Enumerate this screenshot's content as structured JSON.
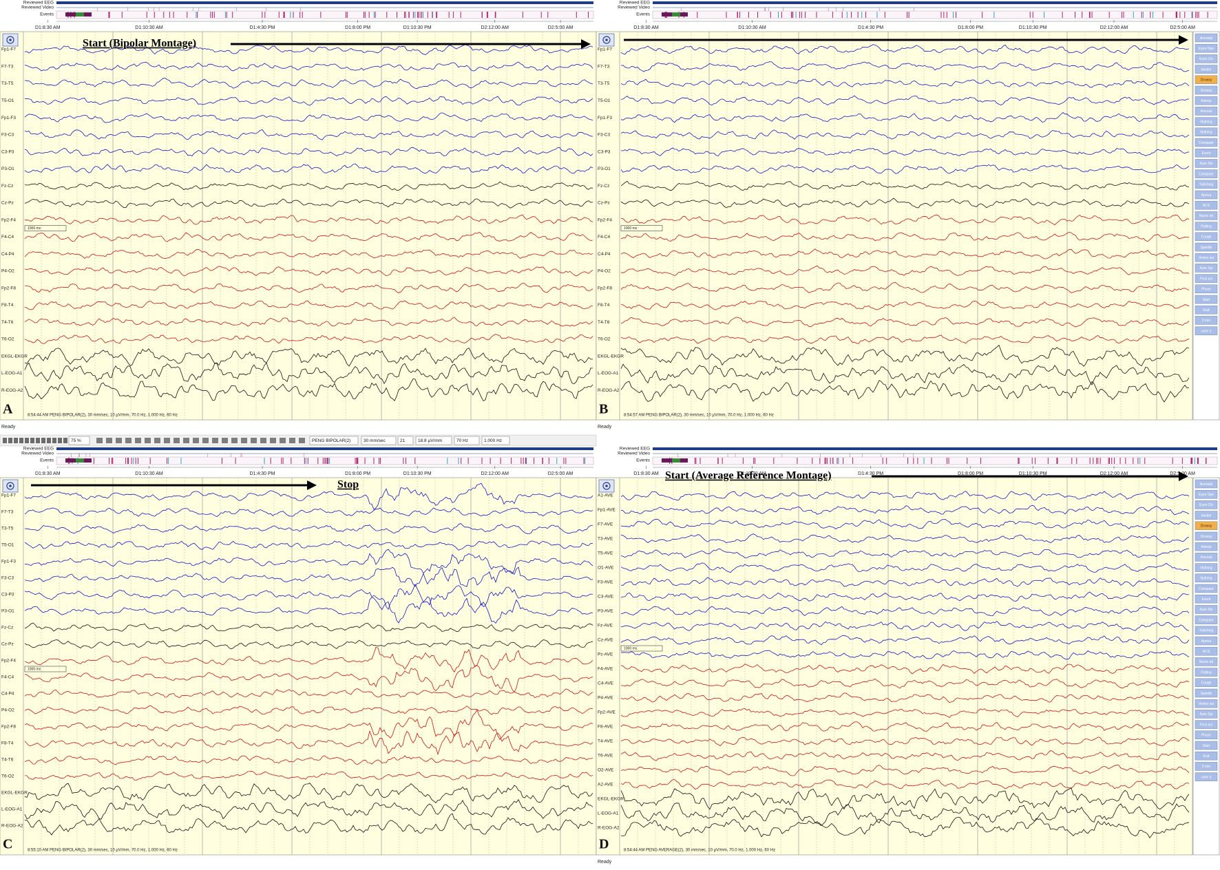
{
  "header_rows": [
    "Reviewed EEG",
    "Reviewed Video",
    "Events"
  ],
  "timeline": [
    "D1:8:30 AM",
    "D1:10:30 AM",
    "D1:4:30 PM",
    "D1:8:00 PM",
    "D1:10:30 PM",
    "D2:12:00 AM",
    "D2:5:00 AM"
  ],
  "toolbar": {
    "zoom": "75 %",
    "montage": "PENG BIPOLAR(2)",
    "speed": "30 mm/sec",
    "channels": "21",
    "sensitivity": "18.8 µV/mm",
    "high_filter": "70 Hz",
    "low_filter": "1.000 Hz"
  },
  "status_bar": "Ready",
  "scale_marker": "1000 ms",
  "side_buttons": [
    "Annotati",
    "Eyes Ope",
    "Eyes Clo",
    "Awake",
    "Drowsy",
    "Drowsy",
    "Asleep",
    "Arousal",
    "Nothing",
    "Nothing",
    "Computer",
    "Event",
    "Auto Sle",
    "Computer",
    "Twitching",
    "Apnea",
    "NCS",
    "Nurse att",
    "Patting",
    "Cough",
    "Spindle",
    "Vertex wa",
    "Auto Spi",
    "Post asl",
    "Phase",
    "Start",
    "End",
    "5 min",
    "save a"
  ],
  "panels": [
    {
      "label": "A",
      "annotation": "Start (Bipolar Montage)",
      "status": "8:54:44 AM PENG BIPOLAR(2), 30 mm/sec, 10 µV/mm, 70.0 Hz, 1.000 Hz, 60 Hz",
      "channels": [
        "Fp1-F7",
        "F7-T3",
        "T3-T5",
        "T5-O1",
        "Fp1-F3",
        "F3-C3",
        "C3-P3",
        "P3-O1",
        "Fz-Cz",
        "Cz-Pz",
        "Fp2-F4",
        "F4-C4",
        "C4-P4",
        "P4-O2",
        "Fp2-F8",
        "F8-T4",
        "T4-T6",
        "T6-O2",
        "EKGL-EKGR",
        "L-EOG-A1",
        "R-EOG-A2"
      ]
    },
    {
      "label": "B",
      "status": "8:54:57 AM PENG BIPOLAR(2), 30 mm/sec, 10 µV/mm, 70.0 Hz, 1.000 Hz, 60 Hz",
      "channels": [
        "Fp1-F7",
        "F7-T3",
        "T3-T5",
        "T5-O1",
        "Fp1-F3",
        "F3-C3",
        "C3-P3",
        "P3-O1",
        "Fz-Cz",
        "Cz-Pz",
        "Fp2-F4",
        "F4-C4",
        "C4-P4",
        "P4-O2",
        "Fp2-F8",
        "F8-T4",
        "T4-T6",
        "T6-O2",
        "EKGL-EKGR",
        "L-EOG-A1",
        "R-EOG-A2"
      ]
    },
    {
      "label": "C",
      "annotation": "Stop",
      "status": "8:55:10 AM PENG BIPOLAR(2), 30 mm/sec, 10 µV/mm, 70.0 Hz, 1.000 Hz, 60 Hz",
      "channels": [
        "Fp1-F7",
        "F7-T3",
        "T3-T5",
        "T5-O1",
        "Fp1-F3",
        "F3-C3",
        "C3-P3",
        "P3-O1",
        "Fz-Cz",
        "Cz-Pz",
        "Fp2-F4",
        "F4-C4",
        "C4-P4",
        "P4-O2",
        "Fp2-F8",
        "F8-T4",
        "T4-T6",
        "T6-O2",
        "EKGL-EKGR",
        "L-EOG-A1",
        "R-EOG-A2"
      ]
    },
    {
      "label": "D",
      "annotation": "Start (Average Reference Montage)",
      "status": "8:54:44 AM PENG AVERAGE(2), 30 mm/sec, 10 µV/mm, 70.0 Hz, 1.000 Hz, 60 Hz",
      "channels": [
        "A1-AVE",
        "Fp1-AVE",
        "F7-AVE",
        "T3-AVE",
        "T5-AVE",
        "O1-AVE",
        "F3-AVE",
        "C3-AVE",
        "P3-AVE",
        "Fz-AVE",
        "Cz-AVE",
        "Pz-AVE",
        "F4-AVE",
        "C4-AVE",
        "P4-AVE",
        "Fp2-AVE",
        "F8-AVE",
        "T4-AVE",
        "T6-AVE",
        "O2-AVE",
        "A2-AVE",
        "EKGL-EKGR",
        "L-EOG-A1",
        "R-EOG-A2"
      ]
    }
  ]
}
